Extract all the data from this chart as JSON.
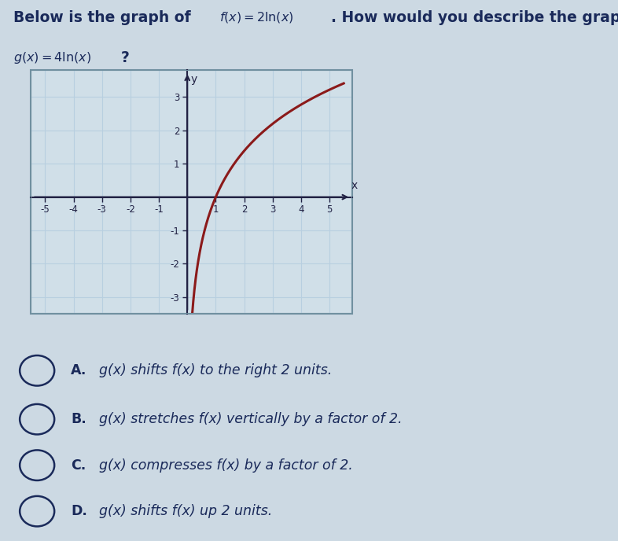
{
  "xlim": [
    -5.5,
    5.8
  ],
  "ylim": [
    -3.5,
    3.8
  ],
  "xticks": [
    -5,
    -4,
    -3,
    -2,
    -1,
    1,
    2,
    3,
    4,
    5
  ],
  "yticks": [
    -3,
    -2,
    -1,
    1,
    2,
    3
  ],
  "curve_color": "#8b1a1a",
  "grid_color": "#b8cfe0",
  "grid_bg": "#d0dfe8",
  "outer_bg": "#ccd9e3",
  "box_edge": "#7090a0",
  "axis_color": "#222244",
  "tick_color": "#222244",
  "answer_A": "g(x) shifts f(x) to the right 2 units.",
  "answer_B": "g(x) stretches f(x) vertically by a factor of 2.",
  "answer_C": "g(x) compresses f(x) by a factor of 2.",
  "answer_D": "g(x) shifts f(x) up 2 units.",
  "text_color": "#1a2a5a",
  "circle_color": "#1a2a5a",
  "separator_color": "#b0b8c0",
  "bottom_bar_color": "#3a6090"
}
